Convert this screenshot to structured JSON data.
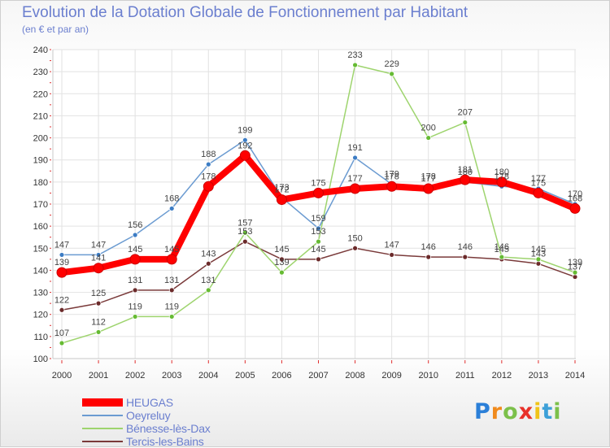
{
  "chart_data": {
    "type": "line",
    "title": "Evolution de la Dotation Globale de Fonctionnement par Habitant",
    "subtitle": "(en € et par an)",
    "x": [
      "2000",
      "2001",
      "2002",
      "2003",
      "2004",
      "2005",
      "2006",
      "2007",
      "2008",
      "2009",
      "2010",
      "2011",
      "2012",
      "2013",
      "2014"
    ],
    "ylim": [
      100,
      240
    ],
    "yticks": [
      100,
      110,
      120,
      130,
      140,
      150,
      160,
      170,
      180,
      190,
      200,
      210,
      220,
      230,
      240
    ],
    "grid": true,
    "legend_position": "bottom-left",
    "series": [
      {
        "name": "HEUGAS",
        "color": "#ff0000",
        "marker_color": "#ff0000",
        "values": [
          139,
          141,
          145,
          145,
          178,
          192,
          172,
          175,
          177,
          178,
          177,
          181,
          180,
          175,
          168
        ],
        "labels": [
          "139",
          "141",
          "145",
          "145",
          "178",
          "192",
          "172",
          "175",
          "177",
          "178",
          "177",
          "181",
          "180",
          "175",
          "168"
        ]
      },
      {
        "name": "Oeyreluy",
        "color": "#6b9bd1",
        "marker_color": "#3c7cc4",
        "values": [
          147,
          147,
          156,
          168,
          188,
          199,
          173,
          159,
          191,
          179,
          178,
          180,
          178,
          177,
          170
        ],
        "labels": [
          "147",
          "147",
          "156",
          "168",
          "188",
          "199",
          "173",
          "159",
          "191",
          "179",
          "178",
          "180",
          "178",
          "177",
          "170"
        ]
      },
      {
        "name": "Bénesse-lès-Dax",
        "color": "#9ed46e",
        "marker_color": "#66bb33",
        "values": [
          107,
          112,
          119,
          119,
          131,
          157,
          139,
          153,
          233,
          229,
          200,
          207,
          146,
          145,
          139
        ],
        "labels": [
          "107",
          "112",
          "119",
          "119",
          "131",
          "157",
          "139",
          "153",
          "233",
          "229",
          "200",
          "207",
          "146",
          "145",
          "139"
        ]
      },
      {
        "name": "Tercis-les-Bains",
        "color": "#7a3a3a",
        "marker_color": "#6b2a2a",
        "values": [
          122,
          125,
          131,
          131,
          143,
          153,
          145,
          145,
          150,
          147,
          146,
          146,
          145,
          143,
          137
        ],
        "labels": [
          "122",
          "125",
          "131",
          "131",
          "143",
          "153",
          "145",
          "145",
          "150",
          "147",
          "146",
          "146",
          "145",
          "143",
          "137"
        ]
      }
    ]
  },
  "logo": {
    "text": "Proxiti",
    "colors": [
      "#2b7fd8",
      "#f08a1c",
      "#7cc04a",
      "#e8312a",
      "#f0c419",
      "#3da0d8",
      "#7cc04a"
    ]
  }
}
